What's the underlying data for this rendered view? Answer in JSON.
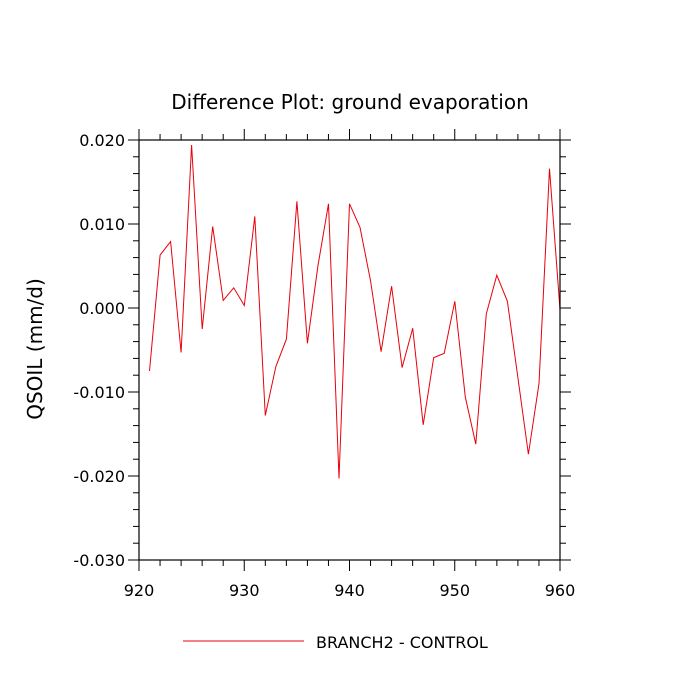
{
  "chart_data": {
    "type": "line",
    "title": "Difference Plot: ground evaporation",
    "xlabel": "",
    "ylabel": "QSOIL  (mm/d)",
    "xlim": [
      920,
      960
    ],
    "ylim": [
      -0.03,
      0.02
    ],
    "x_ticks": [
      920,
      930,
      940,
      950,
      960
    ],
    "x_tick_labels": [
      "920",
      "930",
      "940",
      "950",
      "960"
    ],
    "y_ticks": [
      0.02,
      0.01,
      0.0,
      -0.01,
      -0.02,
      -0.03
    ],
    "y_tick_labels": [
      "0.020",
      "0.010",
      "0.000",
      "-0.010",
      "-0.020",
      "-0.030"
    ],
    "legend_position": "bottom-center",
    "grid": false,
    "series": [
      {
        "name": "BRANCH2 - CONTROL",
        "color": "#e8000b",
        "x": [
          921,
          922,
          923,
          924,
          925,
          926,
          927,
          928,
          929,
          930,
          931,
          932,
          933,
          934,
          935,
          936,
          937,
          938,
          939,
          940,
          941,
          942,
          943,
          944,
          945,
          946,
          947,
          948,
          949,
          950,
          951,
          952,
          953,
          954,
          955,
          956,
          957,
          958,
          959,
          960
        ],
        "values": [
          -0.0075,
          0.0063,
          0.0079,
          -0.0053,
          0.0194,
          -0.0025,
          0.0097,
          0.0009,
          0.0024,
          0.0003,
          0.0109,
          -0.0128,
          -0.007,
          -0.0037,
          0.0127,
          -0.0042,
          0.005,
          0.0124,
          -0.0203,
          0.0124,
          0.0096,
          0.0032,
          -0.0052,
          0.0026,
          -0.0071,
          -0.0024,
          -0.0139,
          -0.0059,
          -0.0054,
          0.0008,
          -0.0106,
          -0.0162,
          -0.0007,
          0.0039,
          0.0008,
          -0.0083,
          -0.0174,
          -0.009,
          0.0166,
          -0.0002
        ]
      }
    ]
  }
}
